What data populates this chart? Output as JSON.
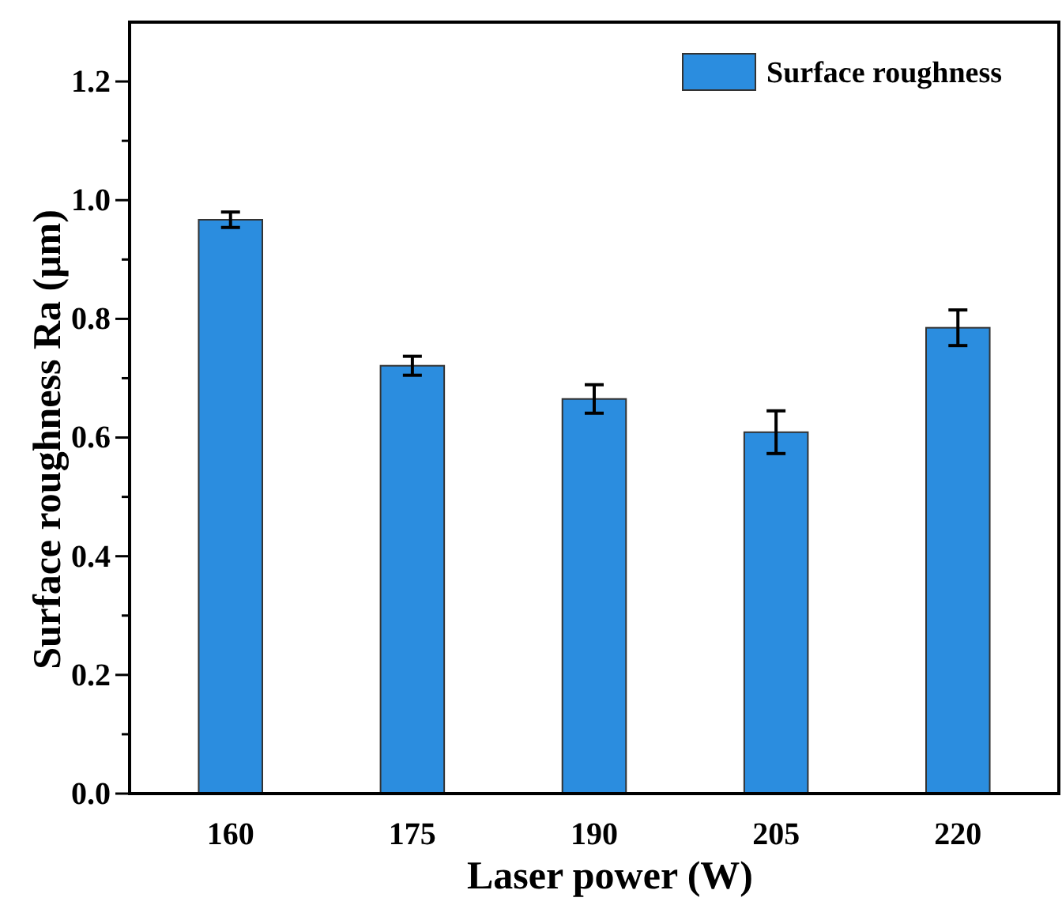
{
  "chart_data": {
    "type": "bar",
    "xlabel": "Laser power (W)",
    "ylabel": "Surface roughness Ra (μm)",
    "categories": [
      "160",
      "175",
      "190",
      "205",
      "220"
    ],
    "series": [
      {
        "name": "Surface roughness",
        "color": "#2b8ddf",
        "values": [
          0.967,
          0.721,
          0.665,
          0.609,
          0.785
        ],
        "errors": [
          0.013,
          0.016,
          0.024,
          0.036,
          0.03
        ]
      }
    ],
    "ylim": [
      0,
      1.3
    ],
    "yticks": [
      {
        "value": 0,
        "label": "0.0"
      },
      {
        "value": 0.1,
        "label": null
      },
      0.2,
      {
        "value": 0.3,
        "label": null
      },
      0.4,
      {
        "value": 0.5,
        "label": null
      },
      0.6,
      {
        "value": 0.7,
        "label": null
      },
      0.8,
      {
        "value": 0.9,
        "label": null
      },
      {
        "value": 1,
        "label": "1.0"
      },
      {
        "value": 1.1,
        "label": null
      },
      1.2
    ],
    "legend": "top right",
    "grid": false
  }
}
